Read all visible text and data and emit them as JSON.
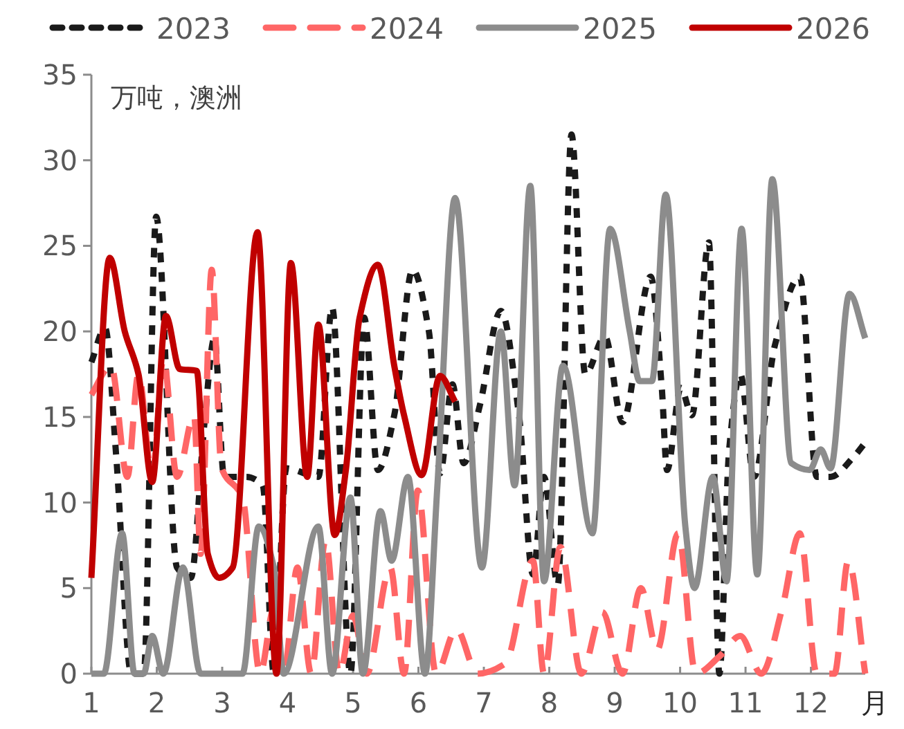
{
  "chart_data": {
    "type": "line",
    "ylabel": "万吨，澳洲",
    "xlabel": "月",
    "xlim": [
      1,
      12.83
    ],
    "xticks": [
      1,
      2,
      3,
      4,
      5,
      6,
      7,
      8,
      9,
      10,
      11,
      12
    ],
    "ylim": [
      0,
      35
    ],
    "yticks": [
      0,
      5,
      10,
      15,
      20,
      25,
      30,
      35
    ],
    "grid": false,
    "legend": "top",
    "marker": "none",
    "series": [
      {
        "name": "2023",
        "color": "#1a1a1a",
        "line_style": "dotted",
        "x": [
          1,
          1.21,
          1.38,
          1.61,
          1.8,
          1.99,
          2.31,
          2.52,
          2.73,
          2.88,
          3.03,
          3.37,
          3.62,
          3.79,
          3.98,
          4.47,
          4.68,
          4.96,
          5.17,
          5.38,
          5.63,
          5.91,
          6.16,
          6.33,
          6.52,
          6.69,
          6.94,
          7.26,
          7.54,
          7.75,
          7.92,
          8.13,
          8.34,
          8.55,
          8.85,
          9.12,
          9.55,
          9.72,
          9.8,
          10.01,
          10.18,
          10.44,
          10.6,
          10.75,
          10.92,
          11.13,
          11.45,
          11.83,
          12.09,
          12.3,
          12.66,
          12.83
        ],
        "values": [
          18.2,
          20.2,
          12.7,
          0,
          0,
          26.7,
          6.2,
          5.6,
          14.7,
          19.6,
          11.5,
          11.5,
          11,
          0,
          12,
          11.5,
          21.4,
          0,
          20.8,
          11.9,
          15.1,
          23.6,
          20,
          11.7,
          16.9,
          12.3,
          15.7,
          21.2,
          15,
          5.8,
          11.5,
          5.2,
          31.5,
          17.5,
          19.7,
          14.7,
          23.2,
          16.7,
          11.9,
          16.7,
          15.1,
          25.2,
          0,
          13.1,
          17.5,
          11.5,
          19.2,
          23.2,
          11.5,
          11.5,
          12.7,
          13.5
        ]
      },
      {
        "name": "2024",
        "color": "#ff6666",
        "line_style": "dashed",
        "x": [
          1,
          1.3,
          1.55,
          1.72,
          1.93,
          2.1,
          2.31,
          2.57,
          2.67,
          2.84,
          2.99,
          3.31,
          3.58,
          3.79,
          3.94,
          4.15,
          4.36,
          4.58,
          4.79,
          5.0,
          5.21,
          5.57,
          5.78,
          5.99,
          6.27,
          6.58,
          6.9,
          7.33,
          7.75,
          7.92,
          8.17,
          8.49,
          8.81,
          9.12,
          9.4,
          9.65,
          9.97,
          10.24,
          10.6,
          10.92,
          11.24,
          11.56,
          11.83,
          12.09,
          12.36,
          12.57,
          12.83
        ],
        "values": [
          16.3,
          18,
          11.5,
          17.5,
          11.5,
          18.4,
          11.5,
          15.1,
          7,
          23.6,
          12,
          10.3,
          0,
          3.8,
          0,
          6.2,
          0,
          7.8,
          0,
          3.4,
          0,
          6.2,
          0,
          10.7,
          0,
          2.6,
          0,
          0.6,
          6.6,
          0,
          7.4,
          0,
          3.6,
          0,
          5,
          1.4,
          8.2,
          0,
          1,
          2.2,
          0,
          3.8,
          8.2,
          0,
          0,
          6.6,
          0
        ]
      },
      {
        "name": "2025",
        "color": "#8c8c8c",
        "line_style": "solid",
        "x": [
          1,
          1.19,
          1.47,
          1.66,
          1.8,
          1.93,
          2.1,
          2.4,
          2.67,
          3.31,
          3.56,
          3.79,
          3.94,
          4.47,
          4.68,
          4.96,
          5.15,
          5.42,
          5.59,
          5.84,
          6.1,
          6.29,
          6.56,
          6.97,
          7.26,
          7.47,
          7.71,
          7.92,
          8.21,
          8.66,
          8.93,
          9.23,
          9.38,
          9.57,
          9.78,
          10.08,
          10.22,
          10.5,
          10.71,
          10.94,
          11.18,
          11.41,
          11.7,
          11.98,
          12.15,
          12.3,
          12.59,
          12.83
        ],
        "values": [
          0,
          0,
          8.2,
          0,
          0,
          2.2,
          0,
          6.2,
          0,
          0,
          8.6,
          6.2,
          0,
          8.6,
          0,
          10.3,
          0,
          9.5,
          6.6,
          11.5,
          0,
          11,
          27.8,
          6.2,
          20,
          11,
          28.5,
          5.4,
          18,
          8.2,
          26,
          20,
          17.1,
          17.1,
          28,
          8.6,
          5,
          11.5,
          5.4,
          26,
          5.8,
          28.9,
          12.3,
          11.9,
          13.1,
          12,
          22.2,
          19.6
        ]
      },
      {
        "name": "2026",
        "color": "#c00000",
        "line_style": "solid",
        "x": [
          1,
          1.28,
          1.51,
          1.72,
          1.93,
          2.14,
          2.35,
          2.61,
          2.78,
          2.95,
          3.16,
          3.54,
          3.83,
          4.05,
          4.3,
          4.47,
          4.72,
          4.89,
          5.1,
          5.38,
          5.63,
          5.78,
          6.05,
          6.33,
          6.56
        ],
        "values": [
          5.6,
          24.3,
          20,
          17.5,
          11.2,
          20.9,
          17.8,
          17.7,
          7,
          5.6,
          6.2,
          25.8,
          0,
          24,
          11.5,
          20.4,
          8.1,
          11.9,
          20.8,
          23.9,
          18,
          15.1,
          11.6,
          17.4,
          15.9
        ]
      }
    ]
  }
}
